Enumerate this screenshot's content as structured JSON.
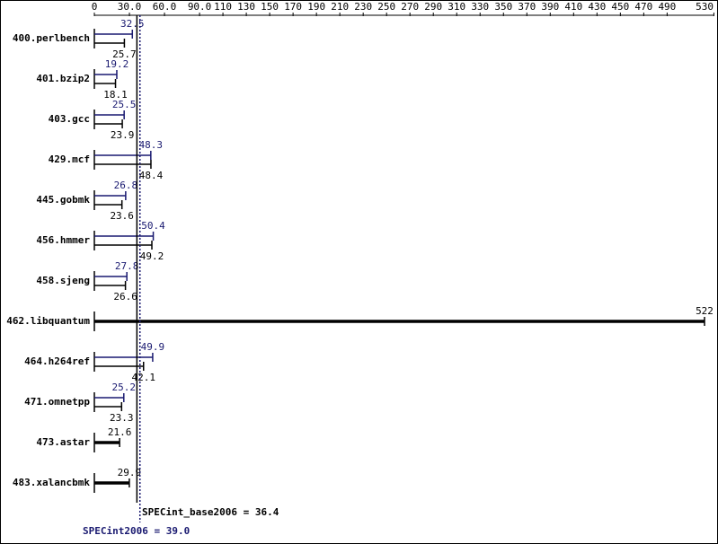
{
  "chart_data": {
    "type": "bar",
    "categories": [
      "400.perlbench",
      "401.bzip2",
      "403.gcc",
      "429.mcf",
      "445.gobmk",
      "456.hmmer",
      "458.sjeng",
      "462.libquantum",
      "464.h264ref",
      "471.omnetpp",
      "473.astar",
      "483.xalancbmk"
    ],
    "series": [
      {
        "color": "#191970",
        "values": [
          32.5,
          19.2,
          25.5,
          48.3,
          26.8,
          50.4,
          27.8,
          null,
          49.9,
          25.2,
          null,
          null
        ]
      },
      {
        "color": "#000000",
        "values": [
          25.7,
          18.1,
          23.9,
          48.4,
          23.6,
          49.2,
          26.6,
          522,
          42.1,
          23.3,
          21.6,
          29.9
        ]
      }
    ],
    "xlim": [
      0,
      522
    ],
    "xticks": [
      0,
      {
        "value": 30,
        "label": "30.0"
      },
      {
        "value": 60,
        "label": "60.0"
      },
      {
        "value": 90,
        "label": "90.0"
      },
      110,
      130,
      150,
      170,
      190,
      210,
      230,
      250,
      270,
      290,
      310,
      330,
      350,
      370,
      390,
      410,
      430,
      450,
      470,
      490,
      530
    ],
    "reference_lines": [
      {
        "label": "SPECint_base2006 = 36.4",
        "value": 36.4,
        "color": "#000000",
        "style": "solid"
      },
      {
        "label": "SPECint2006 = 39.0",
        "value": 39.0,
        "color": "#191970",
        "style": "dotted"
      }
    ]
  }
}
